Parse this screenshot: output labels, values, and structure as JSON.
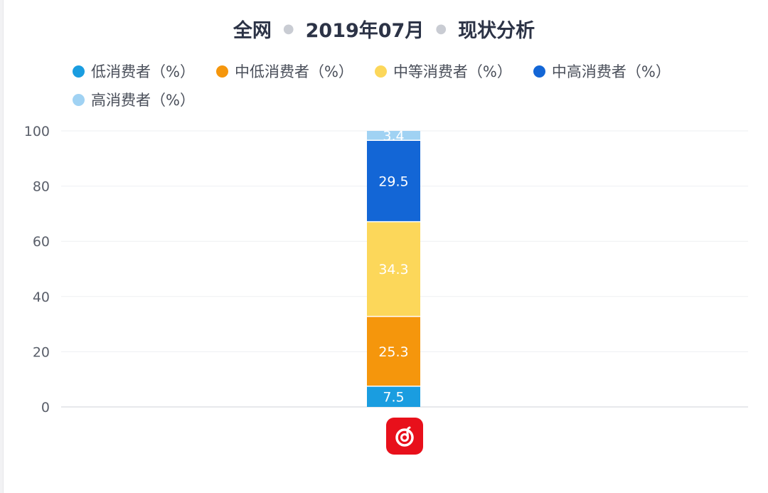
{
  "title": {
    "scope": "全网",
    "period": "2019年07月",
    "analysis": "现状分析"
  },
  "x_axis": {
    "category_icon": "netease-cloud-music-icon"
  },
  "chart_data": {
    "type": "bar",
    "stacked": true,
    "categories": [
      ""
    ],
    "ylim": [
      0,
      100
    ],
    "yticks": [
      0,
      20,
      40,
      60,
      80,
      100
    ],
    "grid": true,
    "legend_position": "top",
    "series": [
      {
        "name": "低消费者（%）",
        "values": [
          7.5
        ],
        "color": "#1a9de0"
      },
      {
        "name": "中低消费者（%）",
        "values": [
          25.3
        ],
        "color": "#f5960c"
      },
      {
        "name": "中等消费者（%）",
        "values": [
          34.3
        ],
        "color": "#fcd75a"
      },
      {
        "name": "中高消费者（%）",
        "values": [
          29.5
        ],
        "color": "#1366d6"
      },
      {
        "name": "高消费者（%）",
        "values": [
          3.4
        ],
        "color": "#a0d2f3"
      }
    ]
  }
}
